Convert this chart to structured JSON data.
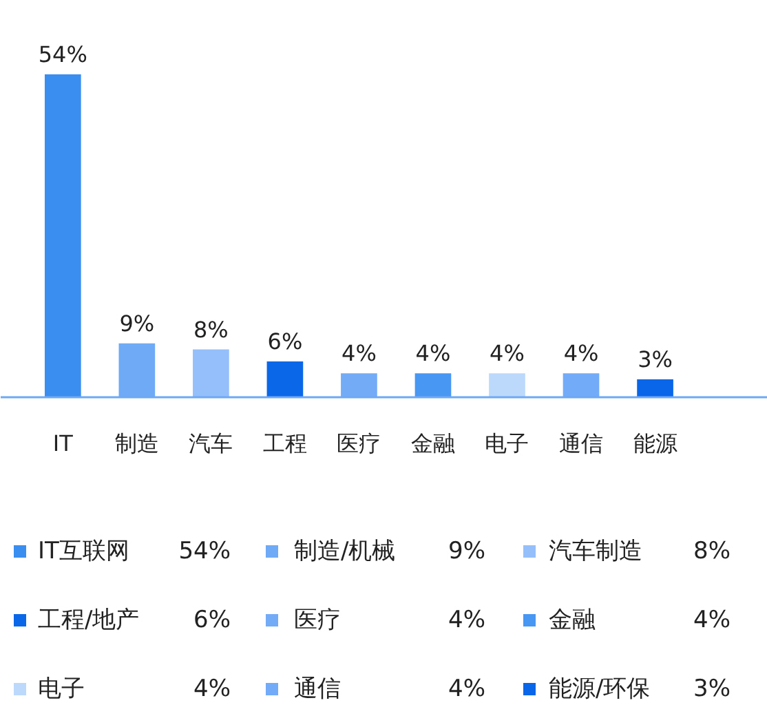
{
  "chart_data": {
    "type": "bar",
    "categories": [
      "IT",
      "制造",
      "汽车",
      "工程",
      "医疗",
      "金融",
      "电子",
      "通信",
      "能源"
    ],
    "legend": "bottom",
    "grid": false,
    "series": [
      {
        "name": "IT互联网",
        "color": "#3a8ef0",
        "values": [
          54,
          null,
          null,
          null,
          null,
          null,
          null,
          null,
          null
        ],
        "value_labels": [
          "54%",
          null,
          null,
          null,
          null,
          null,
          null,
          null,
          null
        ]
      },
      {
        "name": "制造/机械",
        "color": "#6faaf7",
        "values": [
          null,
          9,
          null,
          null,
          null,
          null,
          null,
          null,
          null
        ],
        "value_labels": [
          null,
          "9%",
          null,
          null,
          null,
          null,
          null,
          null,
          null
        ]
      },
      {
        "name": "汽车制造",
        "color": "#94bffa",
        "values": [
          null,
          null,
          8,
          null,
          null,
          null,
          null,
          null,
          null
        ],
        "value_labels": [
          null,
          null,
          "8%",
          null,
          null,
          null,
          null,
          null,
          null
        ]
      },
      {
        "name": "工程/地产",
        "color": "#0a67e8",
        "values": [
          null,
          null,
          null,
          6,
          null,
          null,
          null,
          null,
          null
        ],
        "value_labels": [
          null,
          null,
          null,
          "6%",
          null,
          null,
          null,
          null,
          null
        ]
      },
      {
        "name": "医疗",
        "color": "#74abf7",
        "values": [
          null,
          null,
          null,
          null,
          4,
          null,
          null,
          null,
          null
        ],
        "value_labels": [
          null,
          null,
          null,
          null,
          "4%",
          null,
          null,
          null,
          null
        ]
      },
      {
        "name": "金融",
        "color": "#4898f3",
        "values": [
          null,
          null,
          null,
          null,
          null,
          4,
          null,
          null,
          null
        ],
        "value_labels": [
          null,
          null,
          null,
          null,
          null,
          "4%",
          null,
          null,
          null
        ]
      },
      {
        "name": "电子",
        "color": "#bcd9fc",
        "values": [
          null,
          null,
          null,
          null,
          null,
          null,
          4,
          null,
          null
        ],
        "value_labels": [
          null,
          null,
          null,
          null,
          null,
          null,
          "4%",
          null,
          null
        ]
      },
      {
        "name": "通信",
        "color": "#72abf7",
        "values": [
          null,
          null,
          null,
          null,
          null,
          null,
          null,
          4,
          null
        ],
        "value_labels": [
          null,
          null,
          null,
          null,
          null,
          null,
          null,
          "4%",
          null
        ]
      },
      {
        "name": "能源/环保",
        "color": "#0a66e8",
        "values": [
          null,
          null,
          null,
          null,
          null,
          null,
          null,
          null,
          3
        ],
        "value_labels": [
          null,
          null,
          null,
          null,
          null,
          null,
          null,
          null,
          "3%"
        ]
      }
    ]
  }
}
